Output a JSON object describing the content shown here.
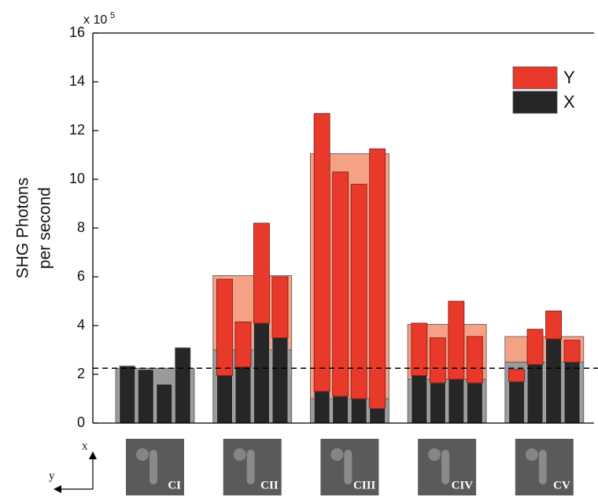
{
  "chart_data": {
    "type": "bar",
    "y_scale_base": "x 10",
    "y_scale_exponent": "5",
    "ylabel": [
      "SHG Photons",
      "per second"
    ],
    "categories": [
      "CI",
      "CII",
      "CIII",
      "CIV",
      "CV"
    ],
    "ylim": [
      0,
      16
    ],
    "yticks": [
      0,
      2,
      4,
      6,
      8,
      10,
      12,
      14,
      16
    ],
    "threshold": 2.25,
    "legend_position": "upper right",
    "series": [
      {
        "name": "Y",
        "color": "#e8392b",
        "mean_color": "#f4a186",
        "values": [
          0,
          3.05,
          10.05,
          2.25,
          1.05
        ],
        "bars": [
          [
            0,
            0,
            0,
            0
          ],
          [
            3.95,
            1.85,
            4.1,
            2.5
          ],
          [
            11.4,
            9.2,
            8.8,
            10.65
          ],
          [
            2.15,
            1.85,
            3.2,
            1.9
          ],
          [
            0.5,
            1.45,
            1.15,
            0.9
          ]
        ]
      },
      {
        "name": "X",
        "color": "#262626",
        "mean_color": "#9a9a9a",
        "values": [
          2.25,
          3.0,
          1.0,
          1.8,
          2.5
        ],
        "bars": [
          [
            2.35,
            2.2,
            1.6,
            3.1
          ],
          [
            1.95,
            2.3,
            4.1,
            3.5
          ],
          [
            1.3,
            1.1,
            1.0,
            0.6
          ],
          [
            1.95,
            1.65,
            1.8,
            1.65
          ],
          [
            1.7,
            2.4,
            3.45,
            2.5
          ]
        ]
      }
    ],
    "orientation": {
      "x": "x",
      "y": "y"
    }
  }
}
